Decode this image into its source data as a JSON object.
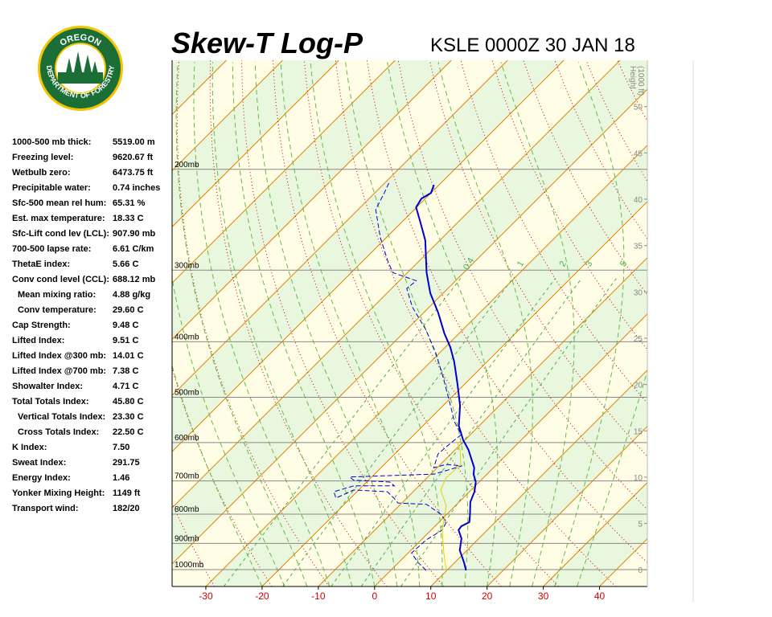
{
  "logo": {
    "top_text": "OREGON",
    "bottom_text": "DEPARTMENT OF FORESTRY"
  },
  "stats": [
    {
      "label": "1000-500 mb thick:",
      "value": "5519.00 m"
    },
    {
      "label": "Freezing level:",
      "value": "9620.67 ft"
    },
    {
      "label": "Wetbulb zero:",
      "value": "6473.75 ft"
    },
    {
      "label": "Precipitable water:",
      "value": "0.74 inches"
    },
    {
      "label": "Sfc-500 mean rel hum:",
      "value": "65.31 %"
    },
    {
      "label": "Est. max temperature:",
      "value": "18.33 C"
    },
    {
      "label": "Sfc-Lift cond lev (LCL):",
      "value": "907.90 mb"
    },
    {
      "label": "700-500 lapse rate:",
      "value": "6.61 C/km"
    },
    {
      "label": "ThetaE index:",
      "value": "5.66 C"
    },
    {
      "label": "Conv cond level (CCL):",
      "value": "688.12 mb"
    },
    {
      "label": "Mean mixing ratio:",
      "value": "4.88 g/kg"
    },
    {
      "label": "Conv temperature:",
      "value": "29.60 C"
    },
    {
      "label": "Cap Strength:",
      "value": "9.48 C"
    },
    {
      "label": "Lifted Index:",
      "value": "9.51 C"
    },
    {
      "label": "Lifted Index @300 mb:",
      "value": "14.01 C"
    },
    {
      "label": "Lifted Index @700 mb:",
      "value": "7.38 C"
    },
    {
      "label": "Showalter Index:",
      "value": "4.71 C"
    },
    {
      "label": "Total Totals Index:",
      "value": "45.80 C"
    },
    {
      "label": "Vertical Totals Index:",
      "value": "23.30 C"
    },
    {
      "label": "Cross Totals Index:",
      "value": "22.50 C"
    },
    {
      "label": "K Index:",
      "value": "7.50"
    },
    {
      "label": "Sweat Index:",
      "value": "291.75"
    },
    {
      "label": "Energy Index:",
      "value": "1.46"
    },
    {
      "label": "Yonker Mixing Height:",
      "value": "1149 ft"
    },
    {
      "label": "Transport wind:",
      "value": "182/20"
    }
  ],
  "chart_data": {
    "type": "skew-t",
    "title": "Skew-T Log-P",
    "subtitle": "KSLE 0000Z 30 JAN 18",
    "xlim": [
      -36,
      48.5
    ],
    "xticks": [
      -30,
      -20,
      -10,
      0,
      10,
      20,
      30,
      40
    ],
    "ylim": [
      1070,
      129
    ],
    "ylog": true,
    "yticks": [
      {
        "value": 1000,
        "label": "1000mb"
      },
      {
        "value": 900,
        "label": "900mb"
      },
      {
        "value": 800,
        "label": "800mb"
      },
      {
        "value": 700,
        "label": "700mb"
      },
      {
        "value": 600,
        "label": "600mb"
      },
      {
        "value": 500,
        "label": "500mb"
      },
      {
        "value": 400,
        "label": "400mb"
      },
      {
        "value": 300,
        "label": "300mb"
      },
      {
        "value": 200,
        "label": "200mb"
      }
    ],
    "y2label": [
      "Height",
      "(1000 ft)"
    ],
    "y2lim": [
      -1.8,
      55
    ],
    "y2ticks": [
      0,
      5,
      10,
      15,
      20,
      25,
      30,
      35,
      40,
      45,
      50
    ],
    "mixing_ratio_lines": [
      0.4,
      1,
      2,
      3,
      5
    ],
    "mixing_ratio_color": "#4caf50",
    "isotherm_color": "#e08000",
    "dry_adiabat_color": "#cc0000",
    "moist_adiabat_color": "#66bb44",
    "band_colors": [
      "#fffde6",
      "#eaf7df"
    ],
    "series": [
      {
        "color": "#0000cc",
        "style": "solid",
        "width": 2,
        "x": [
          13.4,
          11.6,
          8.7,
          6.9,
          4.9,
          4.7,
          5.4,
          4.1,
          2.0,
          0.9,
          -0.6,
          -2.4,
          -3.4,
          -7.6,
          -10.3,
          -13.6,
          -17.0,
          -21.3,
          -25.9,
          -29.1,
          -32.6,
          -37.4,
          -42.3,
          -46.6,
          -52.6,
          -57.0,
          -60.1,
          -60.7,
          -60.0,
          -60.9
        ],
        "values": [
          1003,
          971,
          925,
          882,
          853,
          840,
          826,
          800,
          762,
          731,
          703,
          681,
          664,
          618,
          594,
          561,
          517,
          474,
          433,
          409,
          387,
          356,
          329,
          303,
          266,
          246,
          233,
          225,
          220,
          213
        ]
      },
      {
        "color": "#0000cc",
        "style": "dashed",
        "width": 1,
        "x": [
          6.3,
          3.4,
          0.6,
          0.9,
          2.0,
          1.3,
          -1.1,
          -5.4,
          -10.7,
          -12.3,
          -14.6,
          -20.9,
          -22.6,
          -24.1,
          -21.6,
          -14.4,
          -15.9,
          -22.6,
          -23.9,
          -9.4,
          -5.9,
          -9.0,
          -10.6,
          -12.3,
          -12.0,
          -11.6,
          -15.1,
          -18.7,
          -25.1,
          -30.6,
          -36.6,
          -43.0,
          -47.3,
          -47.0,
          -52.6,
          -55.6,
          -61.1,
          -66.9,
          -68.3,
          -69.3
        ],
        "values": [
          1003,
          971,
          935,
          887,
          853,
          826,
          800,
          769,
          765,
          750,
          731,
          726,
          750,
          731,
          714,
          714,
          703,
          698,
          689,
          681,
          659,
          655,
          664,
          628,
          602,
          581,
          552,
          517,
          461,
          419,
          381,
          348,
          323,
          313,
          303,
          289,
          263,
          235,
          220,
          211
        ]
      },
      {
        "color": "#e6d200",
        "style": "solid",
        "width": 1,
        "x": [
          9.9,
          6.6,
          2.0,
          -1.6,
          -5.4,
          -6.6,
          -6.4,
          -9.1,
          -11.1
        ],
        "values": [
          1003,
          940,
          853,
          774,
          726,
          692,
          655,
          618,
          598
        ]
      }
    ]
  }
}
